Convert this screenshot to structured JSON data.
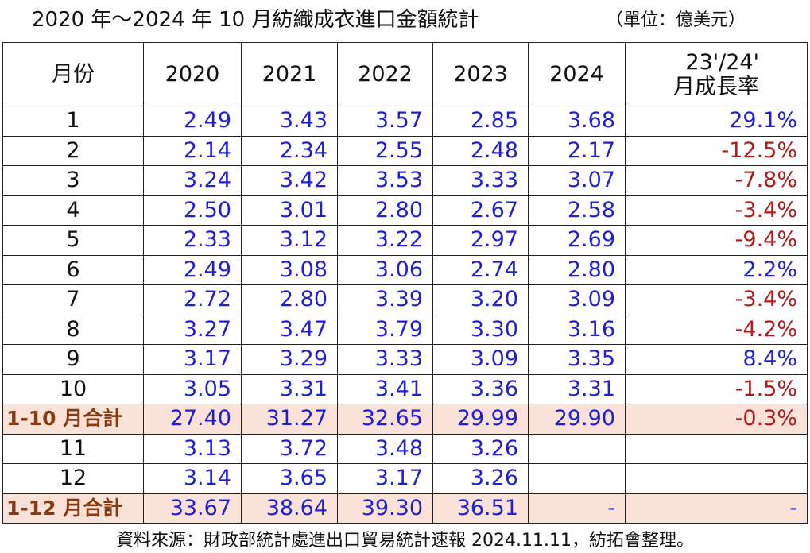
{
  "title": "2020 年～2024 年 10 月紡織成衣進口金額統計",
  "unit": "（單位：億美元）",
  "table": {
    "header": [
      "月份",
      "2020",
      "2021",
      "2022",
      "2023",
      "2024",
      "23'/24'\n月成長率"
    ],
    "rows": [
      {
        "cells": [
          "1",
          "2.49",
          "3.43",
          "3.57",
          "2.85",
          "3.68",
          "29.1%"
        ]
      },
      {
        "cells": [
          "2",
          "2.14",
          "2.34",
          "2.55",
          "2.48",
          "2.17",
          "-12.5%"
        ]
      },
      {
        "cells": [
          "3",
          "3.24",
          "3.42",
          "3.53",
          "3.33",
          "3.07",
          "-7.8%"
        ]
      },
      {
        "cells": [
          "4",
          "2.50",
          "3.01",
          "2.80",
          "2.67",
          "2.58",
          "-3.4%"
        ]
      },
      {
        "cells": [
          "5",
          "2.33",
          "3.12",
          "3.22",
          "2.97",
          "2.69",
          "-9.4%"
        ]
      },
      {
        "cells": [
          "6",
          "2.49",
          "3.08",
          "3.06",
          "2.74",
          "2.80",
          "2.2%"
        ]
      },
      {
        "cells": [
          "7",
          "2.72",
          "2.80",
          "3.39",
          "3.20",
          "3.09",
          "-3.4%"
        ]
      },
      {
        "cells": [
          "8",
          "3.27",
          "3.47",
          "3.79",
          "3.30",
          "3.16",
          "-4.2%"
        ]
      },
      {
        "cells": [
          "9",
          "3.17",
          "3.29",
          "3.33",
          "3.09",
          "3.35",
          "8.4%"
        ]
      },
      {
        "cells": [
          "10",
          "3.05",
          "3.31",
          "3.41",
          "3.36",
          "3.31",
          "-1.5%"
        ]
      },
      {
        "cells": [
          "1-10 月合計",
          "27.40",
          "31.27",
          "32.65",
          "29.99",
          "29.90",
          "-0.3%"
        ],
        "highlight": true
      },
      {
        "cells": [
          "11",
          "3.13",
          "3.72",
          "3.48",
          "3.26"
        ]
      },
      {
        "cells": [
          "12",
          "3.14",
          "3.65",
          "3.17",
          "3.26"
        ]
      },
      {
        "cells": [
          "1-12 月合計",
          "33.67",
          "38.64",
          "39.30",
          "36.51",
          "-",
          "-"
        ],
        "highlight": true
      }
    ]
  },
  "source": "資料來源：財政部統計處進出口貿易統計速報 2024.11.11，紡拓會整理。"
}
